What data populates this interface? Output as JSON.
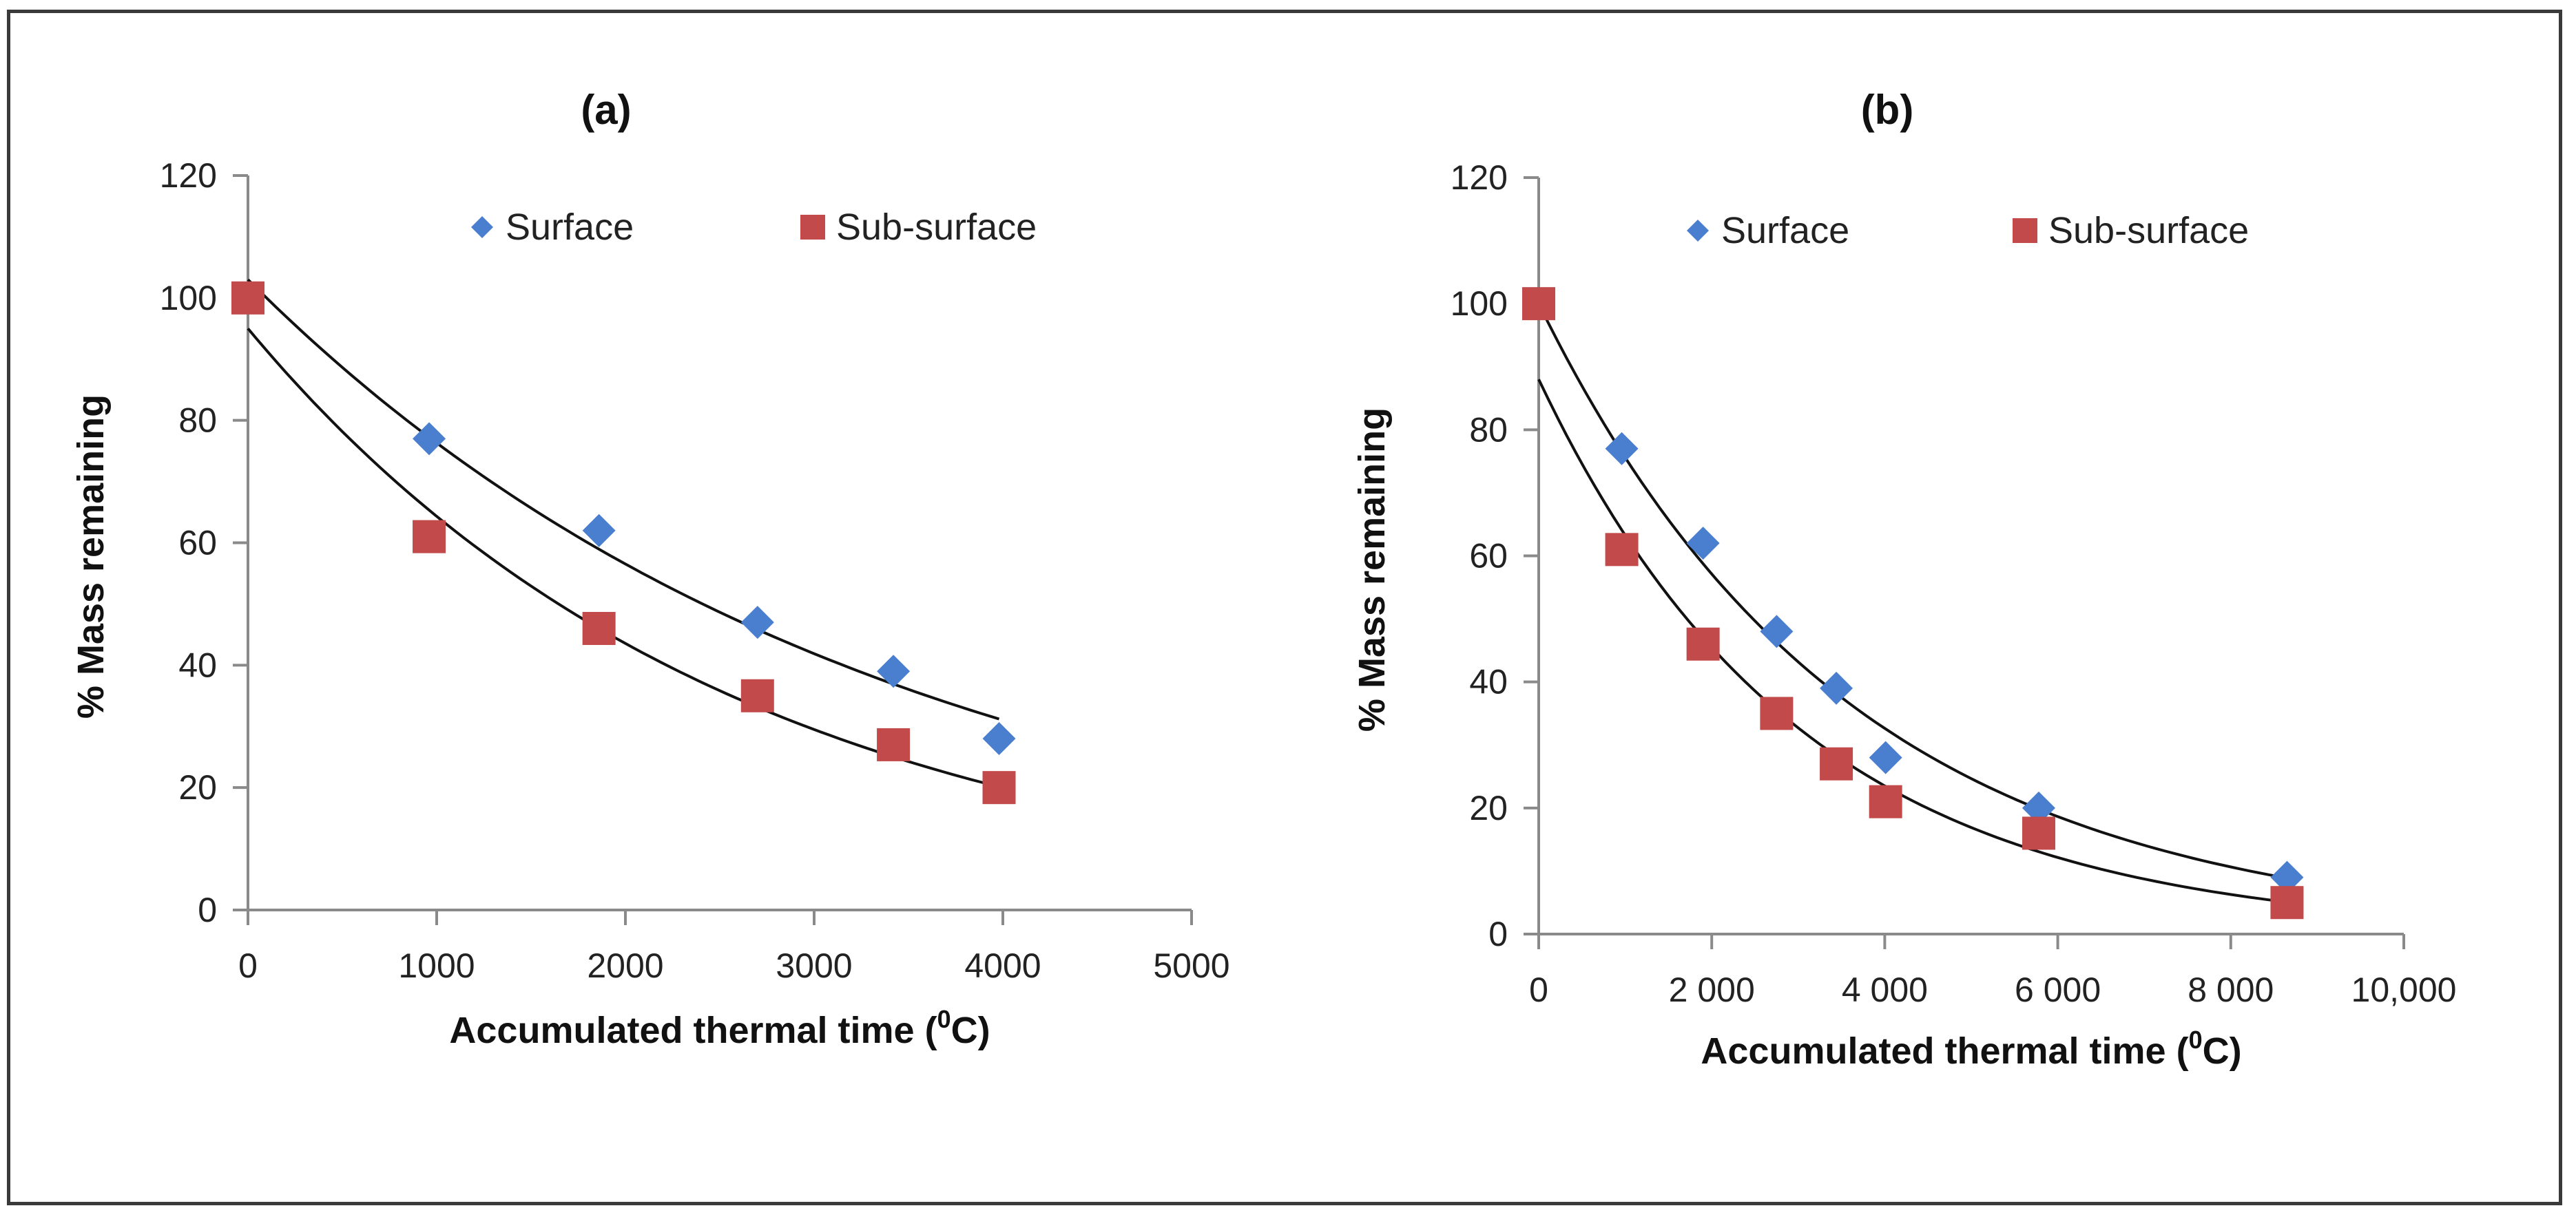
{
  "chart_data": [
    {
      "type": "scatter",
      "title": "(a)",
      "xlabel": "Accumulated thermal time (",
      "xlabel_sup": "0",
      "xlabel_end": "C)",
      "ylabel": "% Mass remaining",
      "xlim": [
        0,
        5000
      ],
      "ylim": [
        0,
        120
      ],
      "xticks": [
        0,
        1000,
        2000,
        3000,
        4000,
        5000
      ],
      "xtick_labels": [
        "0",
        "1000",
        "2000",
        "3000",
        "4000",
        "5000"
      ],
      "yticks": [
        0,
        20,
        40,
        60,
        80,
        100,
        120
      ],
      "ytick_labels": [
        "0",
        "20",
        "40",
        "60",
        "80",
        "100",
        "120"
      ],
      "grid": false,
      "legend": "top",
      "series": [
        {
          "name": "Surface",
          "marker": "diamond",
          "color": "#4a7fcf",
          "x": [
            0,
            960,
            1860,
            2700,
            3420,
            3980
          ],
          "y": [
            100,
            77,
            62,
            47,
            39,
            28
          ],
          "trend": {
            "a": 103,
            "b": 0.0003,
            "x_end": 3980
          }
        },
        {
          "name": "Sub-surface",
          "marker": "square",
          "color": "#c24a4a",
          "x": [
            0,
            960,
            1860,
            2700,
            3420,
            3980
          ],
          "y": [
            100,
            61,
            46,
            35,
            27,
            20
          ],
          "trend": {
            "a": 95,
            "b": 0.00039,
            "x_end": 3980
          }
        }
      ]
    },
    {
      "type": "scatter",
      "title": "(b)",
      "xlabel": "Accumulated thermal time (",
      "xlabel_sup": "0",
      "xlabel_end": "C)",
      "ylabel": "% Mass remaining",
      "xlim": [
        0,
        10000
      ],
      "ylim": [
        0,
        120
      ],
      "xticks": [
        0,
        2000,
        4000,
        6000,
        8000,
        10000
      ],
      "xtick_labels": [
        "0",
        "2 000",
        "4 000",
        "6 000",
        "8 000",
        "10,000"
      ],
      "yticks": [
        0,
        20,
        40,
        60,
        80,
        100,
        120
      ],
      "ytick_labels": [
        "0",
        "20",
        "40",
        "60",
        "80",
        "100",
        "120"
      ],
      "grid": false,
      "legend": "top",
      "series": [
        {
          "name": "Surface",
          "marker": "diamond",
          "color": "#4a7fcf",
          "x": [
            0,
            960,
            1900,
            2750,
            3440,
            4010,
            5780,
            8650
          ],
          "y": [
            100,
            77,
            62,
            48,
            39,
            28,
            20,
            9
          ],
          "trend": {
            "a": 100,
            "b": 0.00028,
            "x_end": 8650
          }
        },
        {
          "name": "Sub-surface",
          "marker": "square",
          "color": "#c24a4a",
          "x": [
            0,
            960,
            1900,
            2750,
            3440,
            4010,
            5780,
            8650
          ],
          "y": [
            100,
            61,
            46,
            35,
            27,
            21,
            16,
            5
          ],
          "trend": {
            "a": 88,
            "b": 0.00033,
            "x_end": 8650
          }
        }
      ]
    }
  ]
}
